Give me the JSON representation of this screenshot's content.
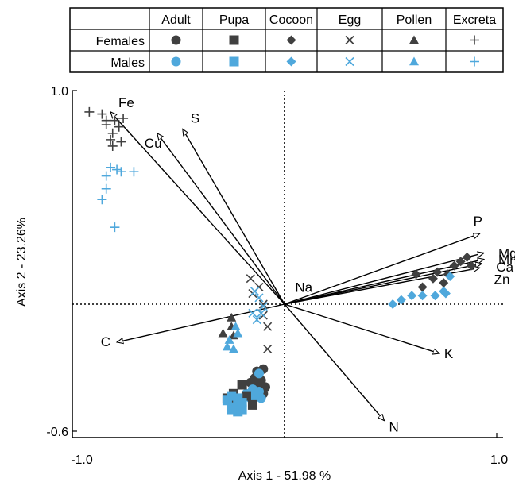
{
  "chart_data": {
    "type": "scatter",
    "title": "",
    "xlabel": "Axis 1 - 51.98 %",
    "ylabel": "Axis 2 - 23.26%",
    "xlim": [
      -1.0,
      1.0
    ],
    "ylim": [
      -0.6,
      1.0
    ],
    "x_tick_labels": [
      "-1.0",
      "1.0"
    ],
    "y_tick_labels": [
      "1.0",
      "-0.6"
    ],
    "grid": false,
    "reference_lines": {
      "x": 0,
      "y": 0
    },
    "legend": {
      "placement": "top",
      "layout": "table",
      "columns": [
        "Adult",
        "Pupa",
        "Cocoon",
        "Egg",
        "Pollen",
        "Excreta"
      ],
      "rows": [
        {
          "label": "Females",
          "color": "#404040"
        },
        {
          "label": "Males",
          "color": "#4fa8dc"
        }
      ],
      "markers": [
        "circle",
        "square",
        "diamond",
        "x",
        "triangle",
        "plus"
      ]
    },
    "vectors": [
      {
        "label": "Fe",
        "x": -0.82,
        "y": 0.9
      },
      {
        "label": "S",
        "x": -0.48,
        "y": 0.82
      },
      {
        "label": "Cu",
        "x": -0.6,
        "y": 0.8
      },
      {
        "label": "P",
        "x": 0.92,
        "y": 0.33
      },
      {
        "label": "Mg",
        "x": 0.94,
        "y": 0.24
      },
      {
        "label": "Mn",
        "x": 0.94,
        "y": 0.21
      },
      {
        "label": "Ca",
        "x": 0.93,
        "y": 0.19
      },
      {
        "label": "Zn",
        "x": 0.92,
        "y": 0.17
      },
      {
        "label": "Na",
        "x": 0.02,
        "y": 0.02
      },
      {
        "label": "K",
        "x": 0.73,
        "y": -0.22
      },
      {
        "label": "N",
        "x": 0.47,
        "y": -0.52
      },
      {
        "label": "C",
        "x": -0.79,
        "y": -0.17
      }
    ],
    "series": [
      {
        "name": "Females Adult",
        "color": "#404040",
        "marker": "circle",
        "points": [
          [
            -0.13,
            -0.3
          ],
          [
            -0.1,
            -0.29
          ],
          [
            -0.14,
            -0.33
          ],
          [
            -0.11,
            -0.34
          ],
          [
            -0.09,
            -0.37
          ],
          [
            -0.12,
            -0.36
          ],
          [
            -0.14,
            -0.39
          ],
          [
            -0.1,
            -0.4
          ],
          [
            -0.16,
            -0.35
          ]
        ]
      },
      {
        "name": "Males Adult",
        "color": "#4fa8dc",
        "marker": "circle",
        "points": [
          [
            -0.12,
            -0.31
          ],
          [
            -0.15,
            -0.38
          ],
          [
            -0.12,
            -0.39
          ],
          [
            -0.11,
            -0.42
          ],
          [
            -0.14,
            -0.41
          ],
          [
            -0.18,
            -0.4
          ],
          [
            -0.21,
            -0.43
          ],
          [
            -0.16,
            -0.42
          ]
        ]
      },
      {
        "name": "Females Pupa",
        "color": "#404040",
        "marker": "square",
        "points": [
          [
            -0.24,
            -0.4
          ],
          [
            -0.27,
            -0.42
          ],
          [
            -0.2,
            -0.36
          ],
          [
            -0.18,
            -0.41
          ],
          [
            -0.15,
            -0.45
          ],
          [
            -0.23,
            -0.44
          ]
        ]
      },
      {
        "name": "Males Pupa",
        "color": "#4fa8dc",
        "marker": "square",
        "points": [
          [
            -0.25,
            -0.41
          ],
          [
            -0.27,
            -0.43
          ],
          [
            -0.22,
            -0.42
          ],
          [
            -0.2,
            -0.44
          ],
          [
            -0.24,
            -0.46
          ],
          [
            -0.2,
            -0.47
          ],
          [
            -0.22,
            -0.48
          ],
          [
            -0.25,
            -0.47
          ]
        ]
      },
      {
        "name": "Females Cocoon",
        "color": "#404040",
        "marker": "diamond",
        "points": [
          [
            0.65,
            0.08
          ],
          [
            0.7,
            0.12
          ],
          [
            0.75,
            0.1
          ],
          [
            0.77,
            0.14
          ],
          [
            0.83,
            0.2
          ],
          [
            0.86,
            0.22
          ],
          [
            0.8,
            0.18
          ],
          [
            0.88,
            0.18
          ],
          [
            0.72,
            0.15
          ],
          [
            0.62,
            0.14
          ]
        ]
      },
      {
        "name": "Males Cocoon",
        "color": "#4fa8dc",
        "marker": "diamond",
        "points": [
          [
            0.51,
            0.0
          ],
          [
            0.55,
            0.02
          ],
          [
            0.6,
            0.04
          ],
          [
            0.65,
            0.04
          ],
          [
            0.71,
            0.04
          ],
          [
            0.76,
            0.05
          ],
          [
            0.78,
            0.13
          ],
          [
            0.75,
            0.06
          ]
        ]
      },
      {
        "name": "Females Egg",
        "color": "#404040",
        "marker": "x",
        "points": [
          [
            -0.16,
            0.12
          ],
          [
            -0.12,
            0.08
          ],
          [
            -0.1,
            0.0
          ],
          [
            -0.08,
            -0.1
          ],
          [
            -0.1,
            -0.05
          ],
          [
            -0.08,
            -0.2
          ],
          [
            -0.15,
            0.05
          ]
        ]
      },
      {
        "name": "Males Egg",
        "color": "#4fa8dc",
        "marker": "x",
        "points": [
          [
            -0.14,
            0.06
          ],
          [
            -0.12,
            0.03
          ],
          [
            -0.15,
            -0.04
          ],
          [
            -0.13,
            -0.07
          ],
          [
            -0.11,
            -0.04
          ],
          [
            -0.1,
            -0.01
          ]
        ]
      },
      {
        "name": "Females Pollen",
        "color": "#404040",
        "marker": "triangle",
        "points": [
          [
            -0.25,
            -0.06
          ],
          [
            -0.29,
            -0.13
          ],
          [
            -0.25,
            -0.1
          ],
          [
            -0.24,
            -0.14
          ]
        ]
      },
      {
        "name": "Males Pollen",
        "color": "#4fa8dc",
        "marker": "triangle",
        "points": [
          [
            -0.23,
            -0.1
          ],
          [
            -0.22,
            -0.13
          ],
          [
            -0.26,
            -0.16
          ],
          [
            -0.27,
            -0.19
          ],
          [
            -0.24,
            -0.2
          ]
        ]
      },
      {
        "name": "Females Excreta",
        "color": "#404040",
        "marker": "plus",
        "points": [
          [
            -0.92,
            0.9
          ],
          [
            -0.86,
            0.89
          ],
          [
            -0.84,
            0.86
          ],
          [
            -0.78,
            0.83
          ],
          [
            -0.8,
            0.86
          ],
          [
            -0.81,
            0.8
          ],
          [
            -0.82,
            0.77
          ],
          [
            -0.77,
            0.76
          ],
          [
            -0.81,
            0.74
          ],
          [
            -0.84,
            0.84
          ],
          [
            -0.76,
            0.87
          ]
        ]
      },
      {
        "name": "Males Excreta",
        "color": "#4fa8dc",
        "marker": "plus",
        "points": [
          [
            -0.82,
            0.64
          ],
          [
            -0.84,
            0.6
          ],
          [
            -0.79,
            0.63
          ],
          [
            -0.77,
            0.62
          ],
          [
            -0.84,
            0.54
          ],
          [
            -0.86,
            0.49
          ],
          [
            -0.8,
            0.36
          ],
          [
            -0.71,
            0.62
          ]
        ]
      }
    ]
  }
}
